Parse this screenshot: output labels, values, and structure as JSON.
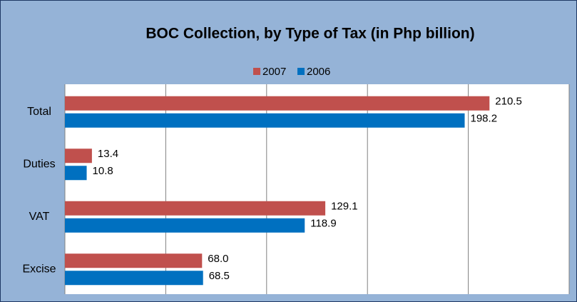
{
  "chart_data": {
    "type": "hbar",
    "title": "BOC Collection, by Type of Tax (in Php billion)",
    "categories": [
      "Total",
      "Duties",
      "VAT",
      "Excise"
    ],
    "series": [
      {
        "name": "2007",
        "color": "#c0504d",
        "values": [
          210.5,
          13.4,
          129.1,
          68.0
        ],
        "value_labels": [
          "210.5",
          "13.4",
          "129.1",
          "68.0"
        ]
      },
      {
        "name": "2006",
        "color": "#0070c0",
        "values": [
          198.2,
          10.8,
          118.9,
          68.5
        ],
        "value_labels": [
          "198.2",
          "10.8",
          "118.9",
          "68.5"
        ]
      }
    ],
    "xlim": [
      0,
      250
    ],
    "xticks": [
      0,
      50,
      100,
      150,
      200,
      250
    ],
    "grid": true,
    "legend": "top"
  }
}
